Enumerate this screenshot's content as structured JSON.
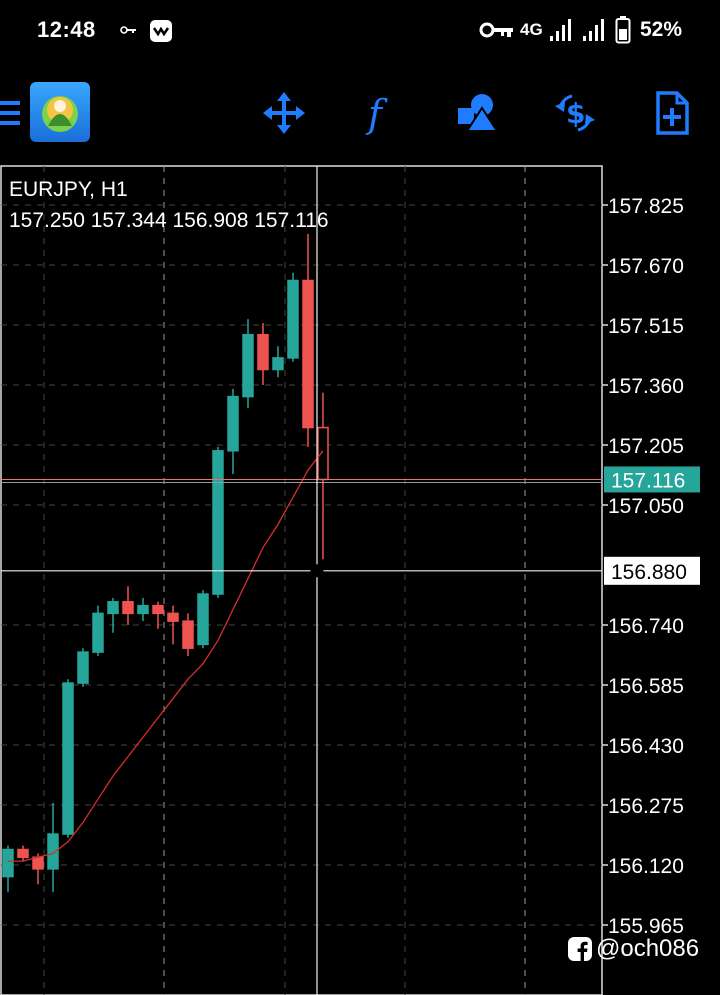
{
  "status_bar": {
    "time": "12:48",
    "network": "4G",
    "battery_percent": "52%",
    "icons": [
      "key-icon",
      "notification-app-icon",
      "vpn-key-icon",
      "signal-icon",
      "signal-icon-2",
      "battery-icon"
    ]
  },
  "toolbar": {
    "buttons": [
      {
        "name": "menu-button",
        "icon": "hamburger-icon"
      },
      {
        "name": "crosshair-button",
        "icon": "crosshair-move-icon"
      },
      {
        "name": "indicators-button",
        "icon": "function-f-icon"
      },
      {
        "name": "objects-button",
        "icon": "shapes-icon"
      },
      {
        "name": "timeframe-button",
        "icon": "dollar-refresh-icon"
      },
      {
        "name": "new-order-button",
        "icon": "document-plus-icon"
      }
    ],
    "accent_color": "#1f7cff"
  },
  "chart": {
    "symbol": "EURJPY, H1",
    "ohlc": "157.250 157.344 156.908 157.116",
    "current_price_label": "157.116",
    "crosshair_price_label": "156.880",
    "bull_color": "#26a69a",
    "bear_color": "#ef5350",
    "ma_color": "#d32f2f",
    "watermark": "@och086"
  },
  "chart_data": {
    "type": "candlestick",
    "price_axis_ticks": [
      "157.825",
      "157.670",
      "157.515",
      "157.360",
      "157.205",
      "157.050",
      "156.740",
      "156.585",
      "156.430",
      "156.275",
      "156.120",
      "155.965"
    ],
    "ylim": [
      155.92,
      157.88
    ],
    "current_price": 157.116,
    "crosshair_price": 156.88,
    "candles": [
      {
        "o": 156.09,
        "h": 156.17,
        "l": 156.05,
        "c": 156.16
      },
      {
        "o": 156.16,
        "h": 156.17,
        "l": 156.13,
        "c": 156.14
      },
      {
        "o": 156.14,
        "h": 156.15,
        "l": 156.07,
        "c": 156.11
      },
      {
        "o": 156.11,
        "h": 156.28,
        "l": 156.05,
        "c": 156.2
      },
      {
        "o": 156.2,
        "h": 156.6,
        "l": 156.19,
        "c": 156.59
      },
      {
        "o": 156.59,
        "h": 156.68,
        "l": 156.58,
        "c": 156.67
      },
      {
        "o": 156.67,
        "h": 156.79,
        "l": 156.66,
        "c": 156.77
      },
      {
        "o": 156.77,
        "h": 156.81,
        "l": 156.72,
        "c": 156.8
      },
      {
        "o": 156.8,
        "h": 156.84,
        "l": 156.74,
        "c": 156.77
      },
      {
        "o": 156.77,
        "h": 156.81,
        "l": 156.75,
        "c": 156.79
      },
      {
        "o": 156.79,
        "h": 156.8,
        "l": 156.73,
        "c": 156.77
      },
      {
        "o": 156.77,
        "h": 156.79,
        "l": 156.69,
        "c": 156.75
      },
      {
        "o": 156.75,
        "h": 156.77,
        "l": 156.66,
        "c": 156.68
      },
      {
        "o": 156.69,
        "h": 156.83,
        "l": 156.68,
        "c": 156.82
      },
      {
        "o": 156.82,
        "h": 157.2,
        "l": 156.81,
        "c": 157.19
      },
      {
        "o": 157.19,
        "h": 157.35,
        "l": 157.13,
        "c": 157.33
      },
      {
        "o": 157.33,
        "h": 157.53,
        "l": 157.3,
        "c": 157.49
      },
      {
        "o": 157.49,
        "h": 157.52,
        "l": 157.36,
        "c": 157.4
      },
      {
        "o": 157.4,
        "h": 157.46,
        "l": 157.38,
        "c": 157.43
      },
      {
        "o": 157.43,
        "h": 157.65,
        "l": 157.42,
        "c": 157.63
      },
      {
        "o": 157.63,
        "h": 157.75,
        "l": 157.2,
        "c": 157.25
      },
      {
        "o": 157.25,
        "h": 157.34,
        "l": 156.91,
        "c": 157.116
      }
    ],
    "ma": [
      156.13,
      156.13,
      156.14,
      156.15,
      156.18,
      156.23,
      156.29,
      156.35,
      156.4,
      156.45,
      156.5,
      156.55,
      156.6,
      156.64,
      156.7,
      156.78,
      156.86,
      156.94,
      157.0,
      157.07,
      157.14,
      157.19
    ],
    "grid": true
  }
}
